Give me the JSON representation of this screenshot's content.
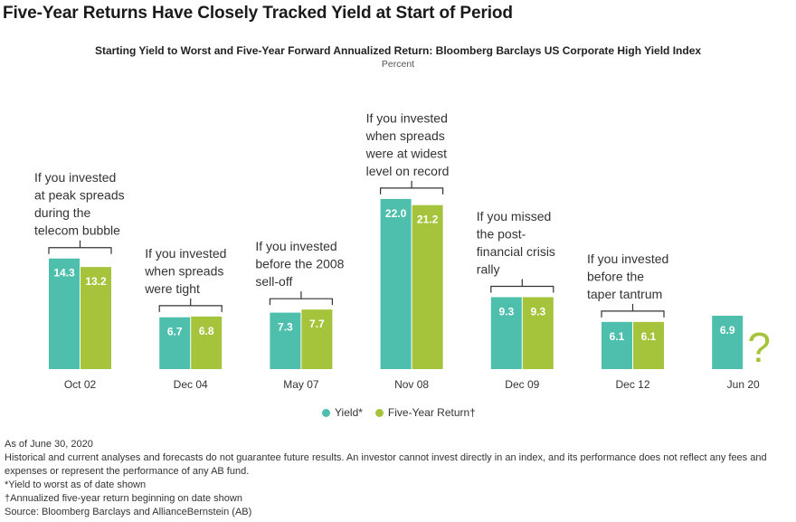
{
  "title": "Five-Year Returns Have Closely Tracked Yield at Start of Period",
  "chart_data": {
    "type": "bar",
    "subtitle": "Starting Yield to Worst and Five-Year Forward Annualized Return: Bloomberg Barclays US Corporate High Yield Index",
    "unit": "Percent",
    "categories": [
      "Oct 02",
      "Dec 04",
      "May 07",
      "Nov 08",
      "Dec 09",
      "Dec 12",
      "Jun 20"
    ],
    "series": [
      {
        "name": "Yield*",
        "color": "#4fbfad",
        "values": [
          14.3,
          6.7,
          7.3,
          22.0,
          9.3,
          6.1,
          6.9
        ]
      },
      {
        "name": "Five-Year Return†",
        "color": "#a5c43b",
        "values": [
          13.2,
          6.8,
          7.7,
          21.2,
          9.3,
          6.1,
          null
        ]
      }
    ],
    "missing_marker": "?",
    "annotations": [
      "If you invested\nat peak spreads\nduring the\ntelecom bubble",
      "If you invested\nwhen spreads\nwere tight",
      "If you invested\nbefore the 2008\nsell-off",
      "If you invested\nwhen spreads\nwere at widest\nlevel on record",
      "If you missed\nthe post-\nfinancial crisis\nrally",
      "If you invested\nbefore the\ntaper tantrum",
      ""
    ],
    "ylim": [
      0,
      23
    ]
  },
  "legend": {
    "yield": "Yield*",
    "return": "Five-Year Return†"
  },
  "notes": {
    "as_of": "As of June 30, 2020",
    "disclaimer": "Historical and current analyses and forecasts do not guarantee future results. An investor cannot invest directly in an index, and its performance does not reflect any fees and expenses or represent the performance of any AB fund.",
    "yield_note": "*Yield to worst as of date shown",
    "return_note": "†Annualized five-year return beginning on date shown",
    "source": "Source: Bloomberg Barclays and AllianceBernstein (AB)"
  }
}
